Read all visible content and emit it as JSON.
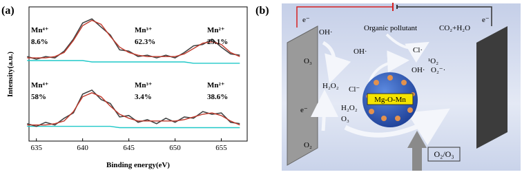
{
  "chart_data": {
    "type": "line",
    "panel_label": "(a)",
    "x_label": "Binding energy(eV)",
    "y_label": "Intensity(a.u.)",
    "x": [
      634,
      635,
      636,
      637,
      638,
      639,
      640,
      641,
      642,
      643,
      644,
      645,
      646,
      647,
      648,
      649,
      650,
      651,
      652,
      653,
      654,
      655,
      656,
      657
    ],
    "xlim": [
      634.2,
      657.8
    ],
    "ylim": [
      0,
      100
    ],
    "xticks": [
      635,
      640,
      645,
      650,
      655
    ],
    "series": [
      {
        "color": "#1fc8c8",
        "values": [
          60,
          60,
          60,
          60,
          60,
          60,
          60,
          59,
          59,
          59,
          59,
          59,
          59,
          59,
          59,
          59,
          59,
          59,
          58,
          58,
          58,
          58,
          58,
          58
        ]
      },
      {
        "color": "#444444",
        "values": [
          63,
          61,
          63,
          62,
          67,
          76,
          88,
          91,
          85,
          79,
          68,
          67,
          63,
          64,
          62,
          64,
          62,
          66,
          71,
          72,
          76,
          70,
          65,
          64
        ]
      },
      {
        "color": "#c0392b",
        "values": [
          62,
          62,
          62,
          63,
          66,
          75,
          86,
          90,
          87,
          78,
          70,
          66,
          64,
          63,
          63,
          63,
          63,
          65,
          69,
          73,
          74,
          72,
          66,
          63
        ]
      },
      {
        "color": "#1fc8c8",
        "values": [
          11,
          11,
          11,
          11,
          11,
          11,
          11,
          11,
          11,
          11,
          10,
          10,
          10,
          10,
          10,
          10,
          10,
          10,
          10,
          10,
          10,
          10,
          10,
          10
        ]
      },
      {
        "color": "#444444",
        "values": [
          13,
          11,
          14,
          12,
          17,
          21,
          35,
          38,
          31,
          28,
          18,
          19,
          14,
          16,
          13,
          17,
          14,
          18,
          17,
          22,
          20,
          21,
          14,
          13
        ]
      },
      {
        "color": "#c0392b",
        "values": [
          12,
          12,
          12,
          13,
          15,
          22,
          33,
          36,
          33,
          26,
          20,
          17,
          15,
          15,
          15,
          15,
          15,
          16,
          18,
          20,
          21,
          19,
          15,
          12
        ]
      }
    ],
    "annotations": [
      {
        "text": "Mn⁴⁺",
        "value": "8.6%"
      },
      {
        "text": "Mn³⁺",
        "value": "62.3%"
      },
      {
        "text": "Mn²⁺",
        "value": "29.1%"
      },
      {
        "text": "Mn⁴⁺",
        "value": "58%"
      },
      {
        "text": "Mn³⁺",
        "value": "3.4%"
      },
      {
        "text": "Mn²⁺",
        "value": "38.6%"
      }
    ]
  },
  "diagram": {
    "panel_label": "(b)",
    "labels": [
      "e⁻",
      "e⁻",
      "OH·",
      "O₃",
      "H₂O₂",
      "e⁻",
      "O₂",
      "Organic pollutant",
      "CO₂+H₂O",
      "OH·",
      "Cl·",
      "¹O₂",
      "OH·",
      "O₂⁻·",
      "Cl⁻",
      "H₂O₂",
      "O₃",
      "Mg-O-Mn",
      "O₂/O₃"
    ]
  }
}
